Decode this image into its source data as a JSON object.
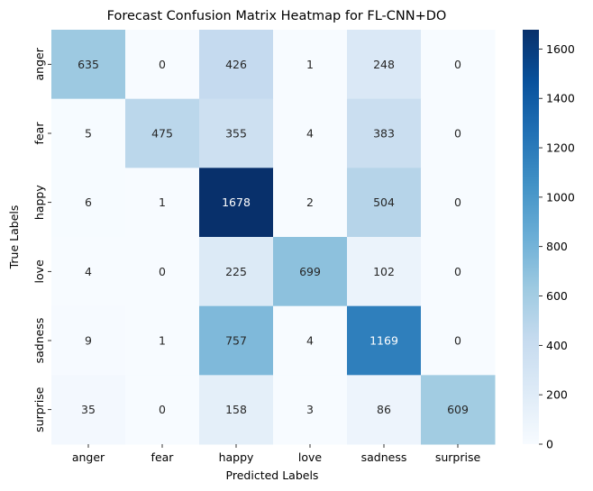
{
  "chart_data": {
    "type": "heatmap",
    "title": "Forecast Confusion Matrix Heatmap for FL-CNN+DO",
    "xlabel": "Predicted Labels",
    "ylabel": "True Labels",
    "x_categories": [
      "anger",
      "fear",
      "happy",
      "love",
      "sadness",
      "surprise"
    ],
    "y_categories": [
      "anger",
      "fear",
      "happy",
      "love",
      "sadness",
      "surprise"
    ],
    "values": [
      [
        635,
        0,
        426,
        1,
        248,
        0
      ],
      [
        5,
        475,
        355,
        4,
        383,
        0
      ],
      [
        6,
        1,
        1678,
        2,
        504,
        0
      ],
      [
        4,
        0,
        225,
        699,
        102,
        0
      ],
      [
        9,
        1,
        757,
        4,
        1169,
        0
      ],
      [
        35,
        0,
        158,
        3,
        86,
        609
      ]
    ],
    "colorbar": {
      "min": 0,
      "max": 1678,
      "ticks": [
        0,
        200,
        400,
        600,
        800,
        1000,
        1200,
        1400,
        1600
      ]
    },
    "colormap": "Blues",
    "grid": false
  }
}
